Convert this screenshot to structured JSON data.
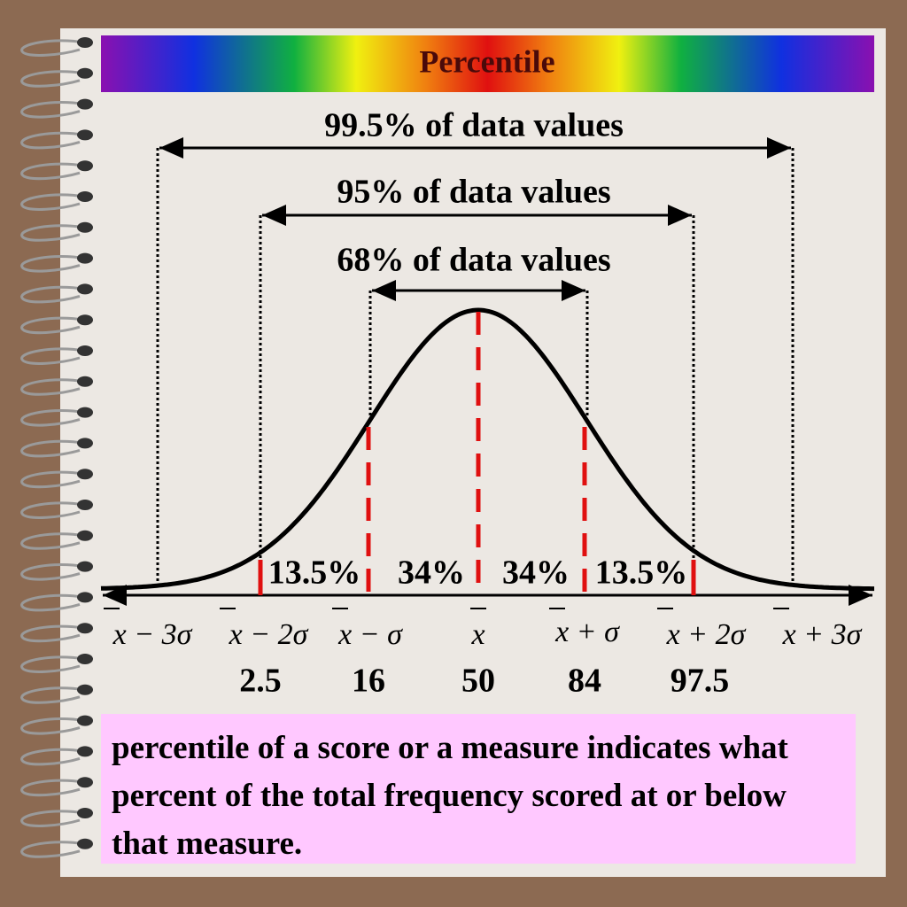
{
  "header": {
    "title": "Percentile"
  },
  "brackets": [
    "99.5% of data values",
    "95% of data values",
    "68% of data values"
  ],
  "segments": [
    "13.5%",
    "34%",
    "34%",
    "13.5%"
  ],
  "sigma_labels": [
    "x − 3σ",
    "x − 2σ",
    "x − σ",
    "x",
    "x + σ",
    "x + 2σ",
    "x + 3σ"
  ],
  "percentiles": [
    "2.5",
    "16",
    "50",
    "84",
    "97.5"
  ],
  "definition": "percentile of a score or a measure indicates what percent of the total frequency scored at or below that measure."
}
